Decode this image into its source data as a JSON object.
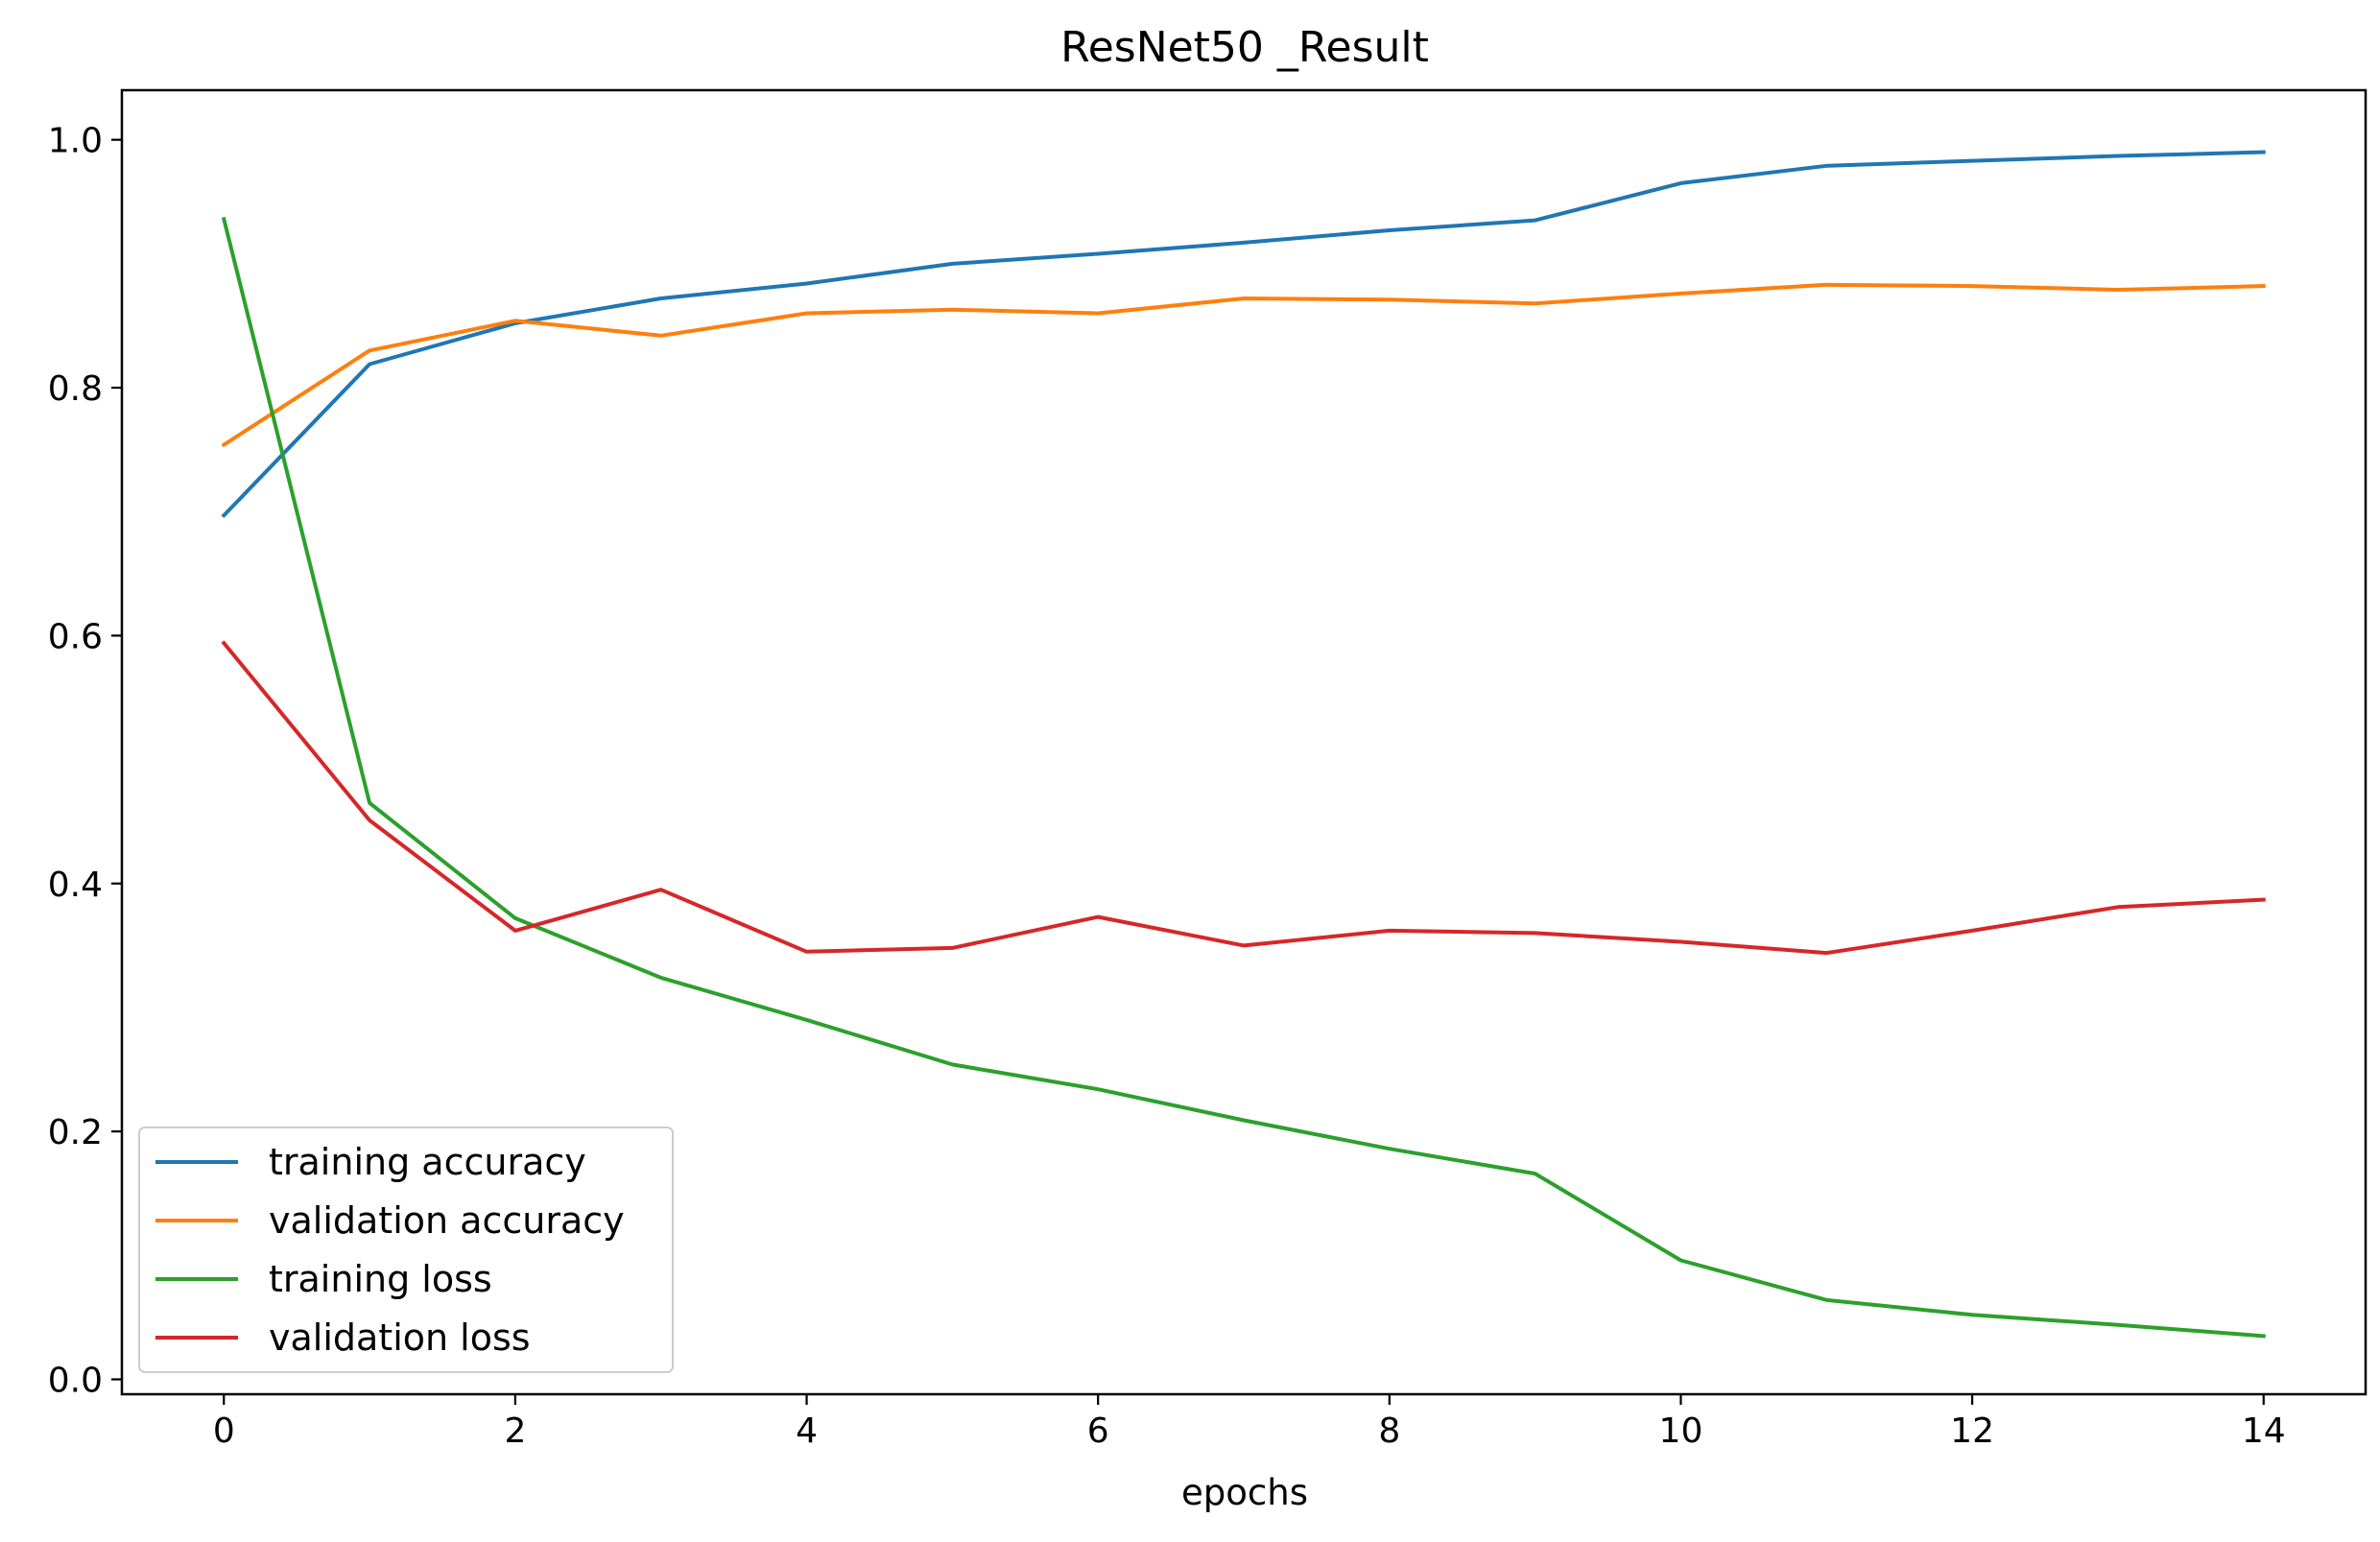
{
  "chart_data": {
    "type": "line",
    "title": "ResNet50 _Result",
    "xlabel": "epochs",
    "ylabel": "",
    "x": [
      0,
      1,
      2,
      3,
      4,
      5,
      6,
      7,
      8,
      9,
      10,
      11,
      12,
      13,
      14
    ],
    "xlim": [
      -0.7,
      14.7
    ],
    "ylim": [
      -0.012,
      1.04
    ],
    "xticks": [
      0,
      2,
      4,
      6,
      8,
      10,
      12,
      14
    ],
    "yticks": [
      0.0,
      0.2,
      0.4,
      0.6,
      0.8,
      1.0
    ],
    "xtick_labels": [
      "0",
      "2",
      "4",
      "6",
      "8",
      "10",
      "12",
      "14"
    ],
    "ytick_labels": [
      "0.0",
      "0.2",
      "0.4",
      "0.6",
      "0.8",
      "1.0"
    ],
    "grid": false,
    "legend_position": "lower-left",
    "series": [
      {
        "name": "training accuracy",
        "color": "#1f77b4",
        "values": [
          0.697,
          0.819,
          0.852,
          0.872,
          0.884,
          0.9,
          0.908,
          0.917,
          0.927,
          0.935,
          0.965,
          0.979,
          0.983,
          0.987,
          0.99
        ]
      },
      {
        "name": "validation accuracy",
        "color": "#ff7f0e",
        "values": [
          0.754,
          0.83,
          0.854,
          0.842,
          0.86,
          0.863,
          0.86,
          0.872,
          0.871,
          0.868,
          0.876,
          0.883,
          0.882,
          0.879,
          0.882
        ]
      },
      {
        "name": "training loss",
        "color": "#2ca02c",
        "values": [
          0.936,
          0.465,
          0.372,
          0.324,
          0.29,
          0.254,
          0.234,
          0.209,
          0.186,
          0.166,
          0.096,
          0.064,
          0.052,
          0.044,
          0.035
        ]
      },
      {
        "name": "validation loss",
        "color": "#d62728",
        "values": [
          0.594,
          0.451,
          0.362,
          0.395,
          0.345,
          0.348,
          0.373,
          0.35,
          0.362,
          0.36,
          0.353,
          0.344,
          0.362,
          0.381,
          0.387
        ]
      }
    ]
  }
}
